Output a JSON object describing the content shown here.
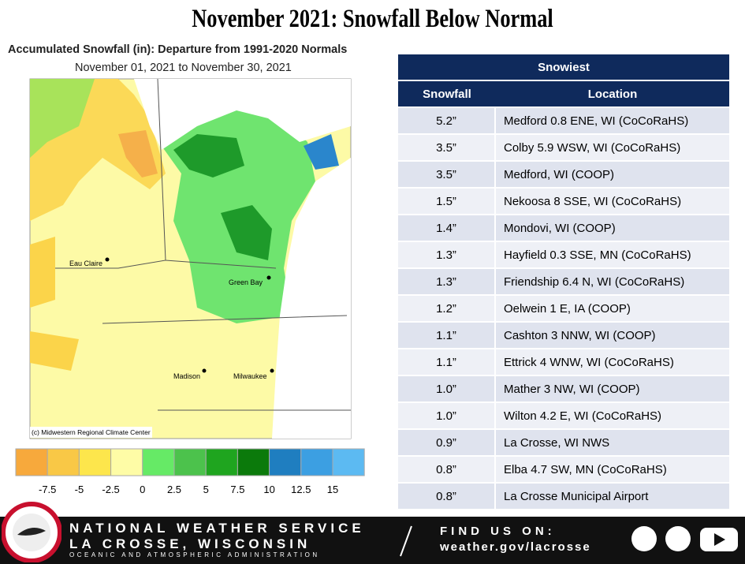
{
  "title": "November 2021:  Snowfall Below Normal",
  "map": {
    "title": "Accumulated Snowfall (in): Departure from 1991-2020 Normals",
    "subtitle": "November 01, 2021 to November 30, 2021",
    "cities": [
      "Eau Claire",
      "Green Bay",
      "Madison",
      "Milwaukee"
    ],
    "credit": "(c) Midwestern Regional Climate Center",
    "legend_colors": [
      "#f7a93c",
      "#f9c846",
      "#fde64c",
      "#fefca6",
      "#66ea66",
      "#4cc24c",
      "#1fa51f",
      "#0b7a0b",
      "#1f7ec0",
      "#3c9fe2",
      "#5cbaf2"
    ],
    "legend_labels": [
      "-7.5",
      "-5",
      "-2.5",
      "0",
      "2.5",
      "5",
      "7.5",
      "10",
      "12.5",
      "15"
    ]
  },
  "table": {
    "title": "Snowiest",
    "columns": [
      "Snowfall",
      "Location"
    ],
    "rows": [
      [
        "5.2”",
        "Medford 0.8 ENE, WI (CoCoRaHS)"
      ],
      [
        "3.5”",
        "Colby 5.9 WSW, WI (CoCoRaHS)"
      ],
      [
        "3.5”",
        "Medford, WI (COOP)"
      ],
      [
        "1.5”",
        "Nekoosa 8 SSE, WI (CoCoRaHS)"
      ],
      [
        "1.4”",
        "Mondovi,  WI (COOP)"
      ],
      [
        "1.3”",
        "Hayfield 0.3 SSE, MN (CoCoRaHS)"
      ],
      [
        "1.3”",
        "Friendship  6.4 N, WI (CoCoRaHS)"
      ],
      [
        "1.2”",
        "Oelwein 1 E, IA (COOP)"
      ],
      [
        "1.1”",
        "Cashton 3 NNW, WI (COOP)"
      ],
      [
        "1.1”",
        "Ettrick 4 WNW, WI (CoCoRaHS)"
      ],
      [
        "1.0”",
        "Mather 3 NW, WI (COOP)"
      ],
      [
        "1.0”",
        "Wilton 4.2 E, WI (CoCoRaHS)"
      ],
      [
        "0.9”",
        "La Crosse, WI NWS"
      ],
      [
        "0.8”",
        "Elba 4.7 SW, MN (CoCoRaHS)"
      ],
      [
        "0.8”",
        "La Crosse Municipal  Airport"
      ]
    ]
  },
  "footer": {
    "office_line1": "NATIONAL WEATHER SERVICE",
    "office_line2": "LA CROSSE, WISCONSIN",
    "agency": "OCEANIC AND ATMOSPHERIC ADMINISTRATION",
    "find_us": "FIND US ON:",
    "url": "weather.gov/lacrosse"
  }
}
